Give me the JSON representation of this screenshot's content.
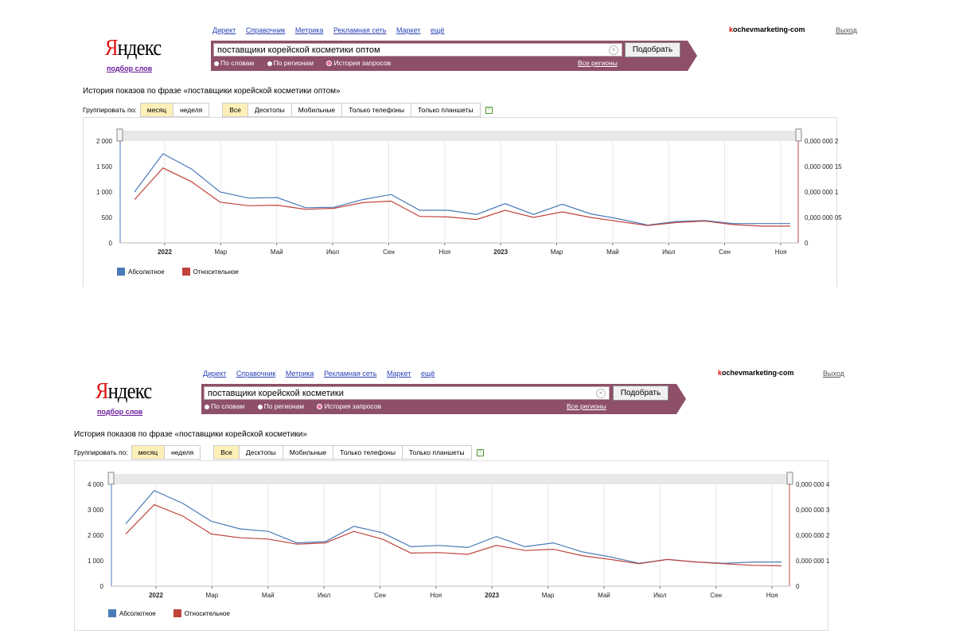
{
  "nav": [
    "Директ",
    "Справочник",
    "Метрика",
    "Рекламная сеть",
    "Маркет",
    "ещё"
  ],
  "user_prefix": "k",
  "user_rest": "ochevmarketing-com",
  "logout": "Выход",
  "logo": {
    "ya": "Я",
    "rest": "ндекс",
    "sub": "подбор слов"
  },
  "search": {
    "button": "Подобрать",
    "radios": [
      "По словам",
      "По регионам",
      "История запросов"
    ],
    "regions": "Все регионы"
  },
  "group_label": "Группировать по:",
  "group_options": [
    "месяц",
    "неделя"
  ],
  "device_options": [
    "Все",
    "Десктопы",
    "Мобильные",
    "Только телефоны",
    "Только планшеты"
  ],
  "legend": [
    "Абсолютное",
    "Относительное"
  ],
  "colors": {
    "abs": "#4a7ab8",
    "rel": "#c0443c",
    "band": "#8e5069"
  },
  "panels": [
    {
      "query": "поставщики корейской косметики оптом",
      "history_title": "История показов по фразе «поставщики корейской косметики оптом»",
      "chart_data": {
        "type": "line",
        "x_labels": [
          "2022",
          "Мар",
          "Май",
          "Июл",
          "Сен",
          "Ноя",
          "2023",
          "Мар",
          "Май",
          "Июл",
          "Сен",
          "Ноя"
        ],
        "y_left_ticks": [
          "2 000",
          "1 500",
          "1 000",
          "500",
          "0"
        ],
        "y_right_ticks": [
          "0,000 000 2",
          "0,000 000 15",
          "0,000 000 1",
          "0,000 000 05",
          "0"
        ],
        "ylim": [
          0,
          2000
        ],
        "series": [
          {
            "name": "Абсолютное",
            "values": [
              1000,
              1750,
              1450,
              1000,
              880,
              890,
              690,
              700,
              850,
              950,
              640,
              640,
              560,
              770,
              560,
              760,
              570,
              470,
              350,
              420,
              440,
              380,
              380,
              380
            ]
          },
          {
            "name": "Относительное",
            "values": [
              850,
              1470,
              1200,
              800,
              730,
              740,
              660,
              680,
              790,
              820,
              520,
              510,
              460,
              640,
              500,
              610,
              500,
              420,
              340,
              400,
              430,
              360,
              330,
              330
            ]
          }
        ]
      }
    },
    {
      "query": "поставщики корейской косметики",
      "history_title": "История показов по фразе «поставщики корейской косметики»",
      "chart_data": {
        "type": "line",
        "x_labels": [
          "2022",
          "Мар",
          "Май",
          "Июл",
          "Сен",
          "Ноя",
          "2023",
          "Мар",
          "Май",
          "Июл",
          "Сен",
          "Ноя"
        ],
        "y_left_ticks": [
          "4 000",
          "3 000",
          "2 000",
          "1 000",
          "0"
        ],
        "y_right_ticks": [
          "0,000 000 4",
          "0,000 000 3",
          "0,000 000 2",
          "0,000 000 1",
          "0"
        ],
        "ylim": [
          0,
          4000
        ],
        "series": [
          {
            "name": "Абсолютное",
            "values": [
              2450,
              3750,
              3250,
              2550,
              2250,
              2150,
              1700,
              1750,
              2350,
              2100,
              1550,
              1600,
              1520,
              1950,
              1550,
              1700,
              1350,
              1150,
              900,
              1050,
              950,
              900,
              950,
              950
            ]
          },
          {
            "name": "Относительное",
            "values": [
              2050,
              3200,
              2750,
              2050,
              1900,
              1850,
              1650,
              1700,
              2150,
              1850,
              1300,
              1320,
              1250,
              1600,
              1400,
              1450,
              1200,
              1050,
              880,
              1050,
              950,
              880,
              820,
              800
            ]
          }
        ]
      }
    }
  ]
}
